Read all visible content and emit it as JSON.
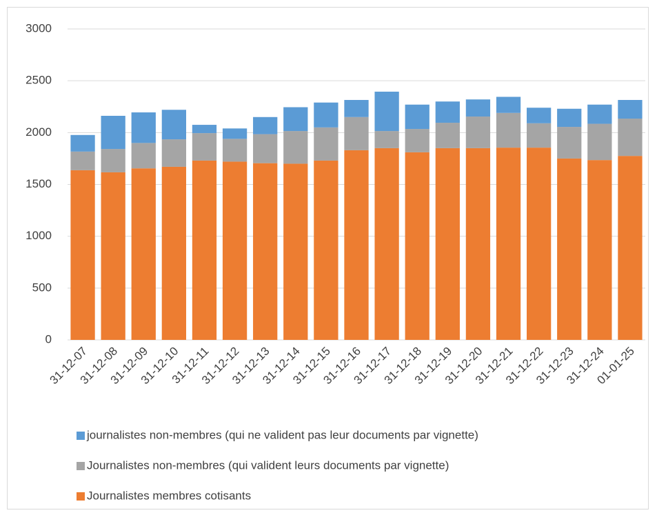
{
  "chart_data": {
    "type": "stacked_bar",
    "categories": [
      "31-12-07",
      "31-12-08",
      "31-12-09",
      "31-12-10",
      "31-12-11",
      "31-12-12",
      "31-12-13",
      "31-12-14",
      "31-12-15",
      "31-12-16",
      "31-12-17",
      "31-12-18",
      "31-12-19",
      "31-12-20",
      "31-12-21",
      "31-12-22",
      "31-12-23",
      "31-12-24",
      "01-01-25"
    ],
    "series": [
      {
        "name": "Journalistes membres cotisants",
        "color": "#ed7d31",
        "values": [
          1637,
          1617,
          1655,
          1670,
          1730,
          1720,
          1705,
          1700,
          1730,
          1830,
          1850,
          1810,
          1850,
          1850,
          1855,
          1855,
          1750,
          1735,
          1775
        ]
      },
      {
        "name": "Journalistes non-membres (qui valident leurs documents par vignette)",
        "color": "#a5a5a5",
        "values": [
          180,
          225,
          245,
          265,
          265,
          220,
          280,
          315,
          320,
          320,
          165,
          225,
          245,
          305,
          335,
          235,
          305,
          350,
          360
        ]
      },
      {
        "name": "journalistes non-membres (qui ne valident pas leur documents par vignette)",
        "color": "#5b9bd5",
        "values": [
          160,
          320,
          295,
          285,
          80,
          100,
          165,
          230,
          240,
          165,
          380,
          235,
          205,
          165,
          155,
          150,
          175,
          185,
          180
        ]
      }
    ],
    "ylim": [
      0,
      3000
    ],
    "yticks": [
      0,
      500,
      1000,
      1500,
      2000,
      2500,
      3000
    ],
    "grid": true
  }
}
